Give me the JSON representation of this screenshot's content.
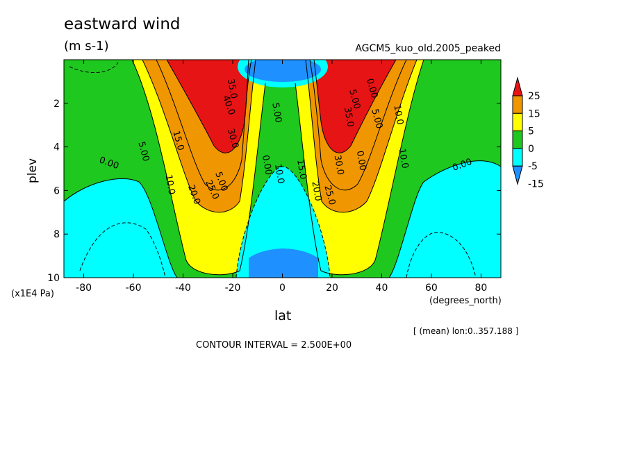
{
  "title": "eastward wind",
  "units": "(m s-1)",
  "run_name": "AGCM5_kuo_old.2005_peaked",
  "x_unit_label": "(degrees_north)",
  "y_unit_label": "(x1E4 Pa)",
  "mean_note": "[ (mean) lon:0..357.188 ]",
  "contour_interval": "CONTOUR INTERVAL = 2.500E+00",
  "colors": {
    "neg15": "#1e90ff",
    "neg5": "#00ffff",
    "zero": "#1ec81e",
    "five": "#ffff00",
    "fifteen": "#f09600",
    "twentyfive": "#e61414",
    "contour": "#000000"
  },
  "chart_data": {
    "type": "heatmap",
    "variable": "eastward wind",
    "units": "m s-1",
    "xlabel": "lat",
    "ylabel": "plev",
    "xlim": [
      -88,
      88
    ],
    "ylim": [
      10,
      0
    ],
    "x_ticks": [
      -80,
      -60,
      -40,
      -20,
      0,
      20,
      40,
      60,
      80
    ],
    "y_ticks": [
      2,
      4,
      6,
      8,
      10
    ],
    "colorbar": {
      "levels": [
        -15,
        -5,
        0,
        5,
        15,
        25
      ],
      "labels": [
        "25",
        "15",
        "5",
        "0",
        "-5",
        "-15"
      ]
    },
    "contour_labels": [
      "0.00",
      "5.00",
      "10.0",
      "15.0",
      "20.0",
      "25.0",
      "30.0",
      "35.0",
      "40.0",
      "0.00",
      "5.00",
      "10.0",
      "15.0",
      "20.0",
      "25.0",
      "30.0",
      "35.0",
      "5.00",
      "0.00",
      "0.00",
      "5.00",
      "10.0",
      "10.0",
      "0.00",
      "5.00"
    ],
    "jet_maxima": [
      {
        "lat": -25,
        "plev": 0.6,
        "value": 40
      },
      {
        "lat": 25,
        "plev": 0.6,
        "value": 40
      }
    ],
    "equatorial_minima": [
      {
        "lat": 0,
        "plev": 0.6,
        "value": -15
      },
      {
        "lat": 0,
        "plev": 9.5,
        "value": -15
      }
    ]
  }
}
